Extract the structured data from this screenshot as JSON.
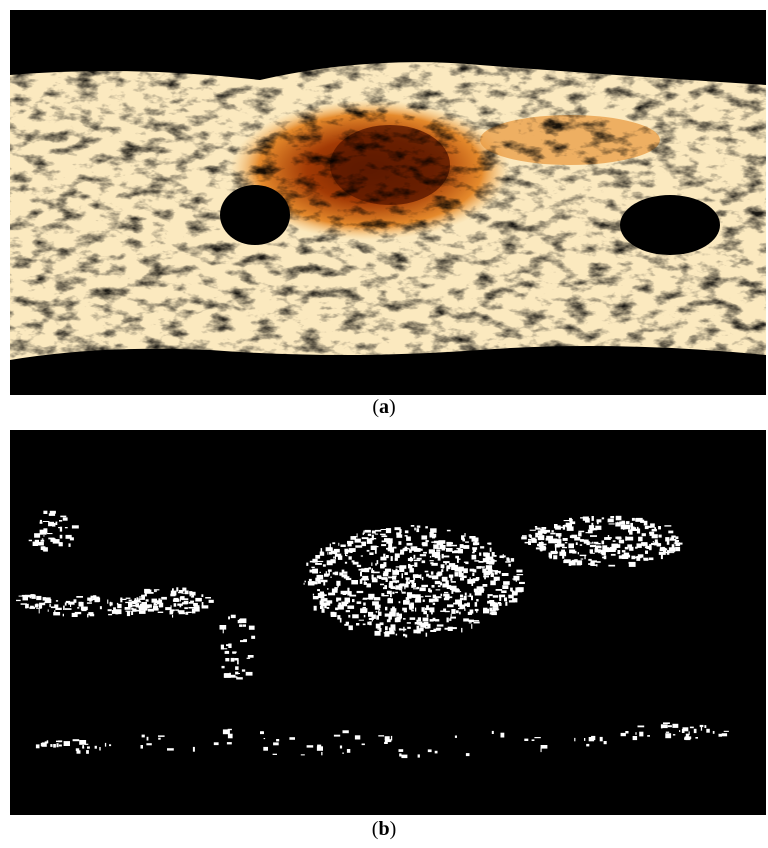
{
  "figures": [
    {
      "caption": [
        "(",
        "a",
        ")"
      ]
    },
    {
      "caption": [
        "(",
        "b",
        ")"
      ]
    }
  ]
}
